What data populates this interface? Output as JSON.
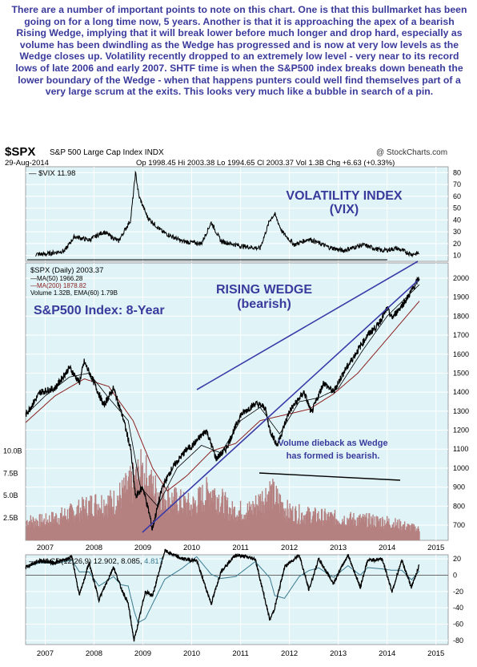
{
  "commentary": "There are a number of important points to note on this chart. One is that this bullmarket has been going on for a long time now, 5 years. Another is that it is approaching the apex of a bearish Rising Wedge, implying that it will break lower before much longer and drop hard, especially as volume has been dwindling as the Wedge has progressed and is now at very low levels as the Wedge closes up. Volatility recently dropped to an extremely low level - very near to its record lows of late 2006 and early 2007. SHTF time is when the S&P500 index breaks down beneath the lower boundary of the Wedge - when that happens punters could well find themselves part of a very large scrum at the exits. This looks very much like a bubble in search of a pin.",
  "header": {
    "symbol": "$SPX",
    "name": "S&P 500 Large Cap Index  INDX",
    "brand": "@ StockCharts.com",
    "date": "29-Aug-2014",
    "quote": "Op 1998.45  Hi 2003.38  Lo 1994.65  Cl 2003.37  Vol 1.3B  Chg +6.63 (+0.33%)"
  },
  "vix_panel": {
    "legend": "— $VIX 11.98",
    "annotation_line1": "VOLATILITY INDEX",
    "annotation_line2": "(VIX)"
  },
  "price_panel": {
    "legend_main": "$SPX (Daily) 2003.37",
    "legend_ma50": "—MA(50) 1966.28",
    "legend_ma200": "—MA(200) 1878.82",
    "legend_volume": "Volume 1.32B, EMA(60) 1.79B",
    "title": "S&P500 Index: 8-Year",
    "wedge_line1": "RISING WEDGE",
    "wedge_line2": "(bearish)",
    "volume_note_line1": "Volume dieback as Wedge",
    "volume_note_line2": "has formed is bearish."
  },
  "macd_panel": {
    "legend_prefix": "— MACD(12,26,9) 12.902, 8.085,",
    "legend_hist": "4.817"
  },
  "colors": {
    "panel_bg": "#e0f4f7",
    "grid": "#ffffff",
    "annotation_blue": "#3a3a9c",
    "price": "#000000",
    "ma200": "#8b2020",
    "volume": "#b07878",
    "macd_signal": "#3a7a90"
  },
  "chart_data": [
    {
      "type": "line",
      "title": "$VIX",
      "x": [
        2006.8,
        2007.0,
        2007.4,
        2007.6,
        2007.9,
        2008.2,
        2008.5,
        2008.75,
        2008.85,
        2008.92,
        2009.1,
        2009.4,
        2009.8,
        2010.2,
        2010.4,
        2010.6,
        2011.0,
        2011.4,
        2011.6,
        2011.7,
        2011.85,
        2012.1,
        2012.4,
        2012.8,
        2013.1,
        2013.5,
        2013.9,
        2014.2,
        2014.5,
        2014.66
      ],
      "y": [
        11,
        11,
        14,
        26,
        23,
        30,
        22,
        40,
        80,
        60,
        42,
        30,
        22,
        20,
        38,
        22,
        18,
        16,
        40,
        45,
        30,
        19,
        24,
        17,
        14,
        19,
        14,
        16,
        11,
        12
      ],
      "ylim": [
        5,
        85
      ],
      "yticks": [
        10,
        20,
        30,
        40,
        50,
        60,
        70,
        80
      ]
    },
    {
      "type": "line",
      "title": "$SPX (Daily)",
      "x": [
        2006.6,
        2006.9,
        2007.2,
        2007.5,
        2007.7,
        2007.8,
        2008.0,
        2008.2,
        2008.4,
        2008.6,
        2008.75,
        2008.85,
        2009.0,
        2009.15,
        2009.19,
        2009.4,
        2009.6,
        2009.9,
        2010.0,
        2010.3,
        2010.5,
        2010.7,
        2011.0,
        2011.3,
        2011.5,
        2011.6,
        2011.75,
        2012.0,
        2012.3,
        2012.45,
        2012.7,
        2012.9,
        2013.1,
        2013.4,
        2013.6,
        2013.8,
        2014.0,
        2014.1,
        2014.4,
        2014.66
      ],
      "y": [
        1280,
        1400,
        1420,
        1530,
        1450,
        1560,
        1450,
        1330,
        1420,
        1260,
        1100,
        850,
        900,
        740,
        676,
        900,
        1000,
        1100,
        1115,
        1200,
        1050,
        1100,
        1280,
        1340,
        1320,
        1200,
        1120,
        1300,
        1400,
        1290,
        1450,
        1400,
        1500,
        1620,
        1700,
        1750,
        1840,
        1790,
        1890,
        2003
      ],
      "ylim": [
        620,
        2080
      ],
      "yticks": [
        700,
        800,
        900,
        1000,
        1100,
        1200,
        1300,
        1400,
        1500,
        1600,
        1700,
        1800,
        1900,
        2000
      ]
    },
    {
      "type": "line",
      "title": "MA(50)",
      "x": [
        2006.6,
        2007.0,
        2007.5,
        2007.9,
        2008.3,
        2008.7,
        2008.95,
        2009.3,
        2009.7,
        2010.2,
        2010.6,
        2011.0,
        2011.4,
        2011.8,
        2012.2,
        2012.6,
        2013.0,
        2013.5,
        2014.0,
        2014.66
      ],
      "y": [
        1280,
        1380,
        1480,
        1500,
        1370,
        1250,
        900,
        800,
        1000,
        1120,
        1080,
        1250,
        1320,
        1180,
        1350,
        1370,
        1420,
        1620,
        1800,
        1966
      ],
      "ylim": [
        620,
        2080
      ]
    },
    {
      "type": "line",
      "title": "MA(200)",
      "x": [
        2006.6,
        2007.2,
        2007.8,
        2008.3,
        2008.8,
        2009.2,
        2009.5,
        2009.9,
        2010.4,
        2010.9,
        2011.4,
        2011.9,
        2012.4,
        2012.9,
        2013.4,
        2013.9,
        2014.66
      ],
      "y": [
        1240,
        1380,
        1470,
        1430,
        1250,
        1000,
        880,
        960,
        1090,
        1130,
        1250,
        1280,
        1310,
        1390,
        1500,
        1650,
        1879
      ],
      "ylim": [
        620,
        2080
      ]
    },
    {
      "type": "bar",
      "title": "Volume",
      "x": [
        2007.0,
        2007.6,
        2008.0,
        2008.4,
        2008.8,
        2009.0,
        2009.2,
        2009.6,
        2010.0,
        2010.4,
        2010.8,
        2011.2,
        2011.6,
        2012.0,
        2012.5,
        2013.0,
        2013.5,
        2014.0,
        2014.66
      ],
      "values": [
        2.4,
        3.5,
        4.5,
        4.7,
        7.0,
        8.5,
        6.4,
        5.0,
        4.2,
        6.2,
        3.6,
        3.7,
        6.0,
        3.4,
        3.0,
        2.7,
        2.5,
        2.3,
        1.32
      ],
      "ylim": [
        0,
        12
      ],
      "yticks": [
        2.5,
        5.0,
        7.5,
        10.0
      ],
      "ytick_labels": [
        "2.5B",
        "5.0B",
        "7.5B",
        "10.0B"
      ]
    },
    {
      "type": "line",
      "title": "MACD(12,26,9)",
      "x": [
        2006.6,
        2006.9,
        2007.2,
        2007.55,
        2007.7,
        2007.9,
        2008.1,
        2008.4,
        2008.55,
        2008.7,
        2008.82,
        2008.9,
        2009.05,
        2009.2,
        2009.45,
        2009.8,
        2010.1,
        2010.4,
        2010.6,
        2010.9,
        2011.3,
        2011.6,
        2011.7,
        2011.9,
        2012.2,
        2012.4,
        2012.6,
        2012.9,
        2013.2,
        2013.45,
        2013.6,
        2013.9,
        2014.1,
        2014.3,
        2014.5,
        2014.66
      ],
      "y": [
        10,
        18,
        15,
        22,
        -25,
        15,
        -30,
        10,
        -15,
        -35,
        -80,
        -60,
        -20,
        -25,
        30,
        20,
        18,
        -35,
        5,
        25,
        20,
        -55,
        -40,
        10,
        25,
        -18,
        20,
        -10,
        25,
        -15,
        18,
        20,
        -20,
        18,
        -15,
        12.902
      ],
      "ylim": [
        -85,
        25
      ],
      "yticks": [
        -80,
        -60,
        -40,
        -20,
        0,
        20
      ]
    }
  ],
  "x_axis": {
    "labels": [
      "2007",
      "2008",
      "2009",
      "2010",
      "2011",
      "2012",
      "2013",
      "2014",
      "2015"
    ],
    "years": [
      2007,
      2008,
      2009,
      2010,
      2011,
      2012,
      2013,
      2014,
      2015
    ]
  }
}
